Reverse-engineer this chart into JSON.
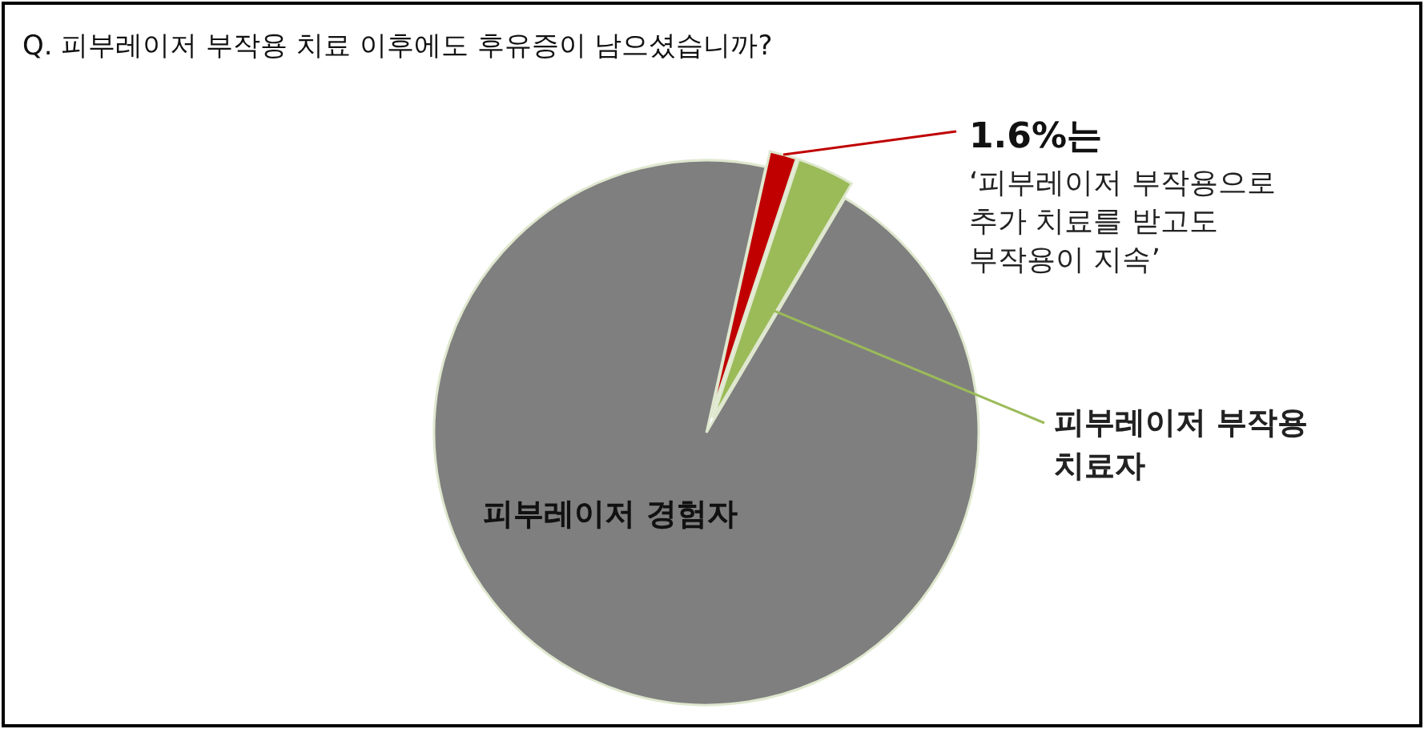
{
  "chart_data": {
    "type": "pie",
    "title": "Q. 피부레이저 부작용 치료 이후에도 후유증이 남으셨습니까?",
    "categories": [
      "‘피부레이저 부작용으로 추가 치료를 받고도 부작용이 지속’",
      "피부레이저 부작용 치료자",
      "피부레이저 경험자"
    ],
    "values": [
      1.6,
      3.4,
      95.0
    ],
    "colors": [
      "#c00000",
      "#9bbb59",
      "#7f7f7f"
    ],
    "value_labels": [
      "1.6%는",
      null,
      null
    ]
  }
}
